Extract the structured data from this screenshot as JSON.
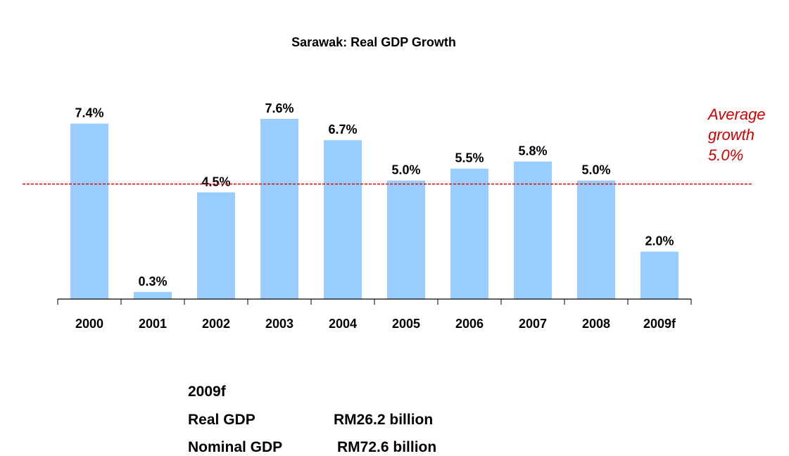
{
  "chart_data": {
    "type": "bar",
    "title": "Sarawak: Real GDP Growth",
    "categories": [
      "2000",
      "2001",
      "2002",
      "2003",
      "2004",
      "2005",
      "2006",
      "2007",
      "2008",
      "2009f"
    ],
    "values": [
      7.4,
      0.3,
      4.5,
      7.6,
      6.7,
      5.0,
      5.5,
      5.8,
      5.0,
      2.0
    ],
    "data_labels": [
      "7.4%",
      "0.3%",
      "4.5%",
      "7.6%",
      "6.7%",
      "5.0%",
      "5.5%",
      "5.8%",
      "5.0%",
      "2.0%"
    ],
    "ylim": [
      0,
      7.6
    ],
    "grid": false,
    "bar_color": "#99CCFF",
    "reference_line": {
      "value": 5.0,
      "color": "#E00000",
      "style": "dashed",
      "label_lines": [
        "Average",
        "growth",
        "5.0%"
      ]
    }
  },
  "summary": {
    "heading": "2009f",
    "rows": [
      {
        "label": "Real GDP",
        "value": "RM26.2 billion"
      },
      {
        "label": "Nominal GDP",
        "value": "RM72.6 billion"
      }
    ]
  }
}
